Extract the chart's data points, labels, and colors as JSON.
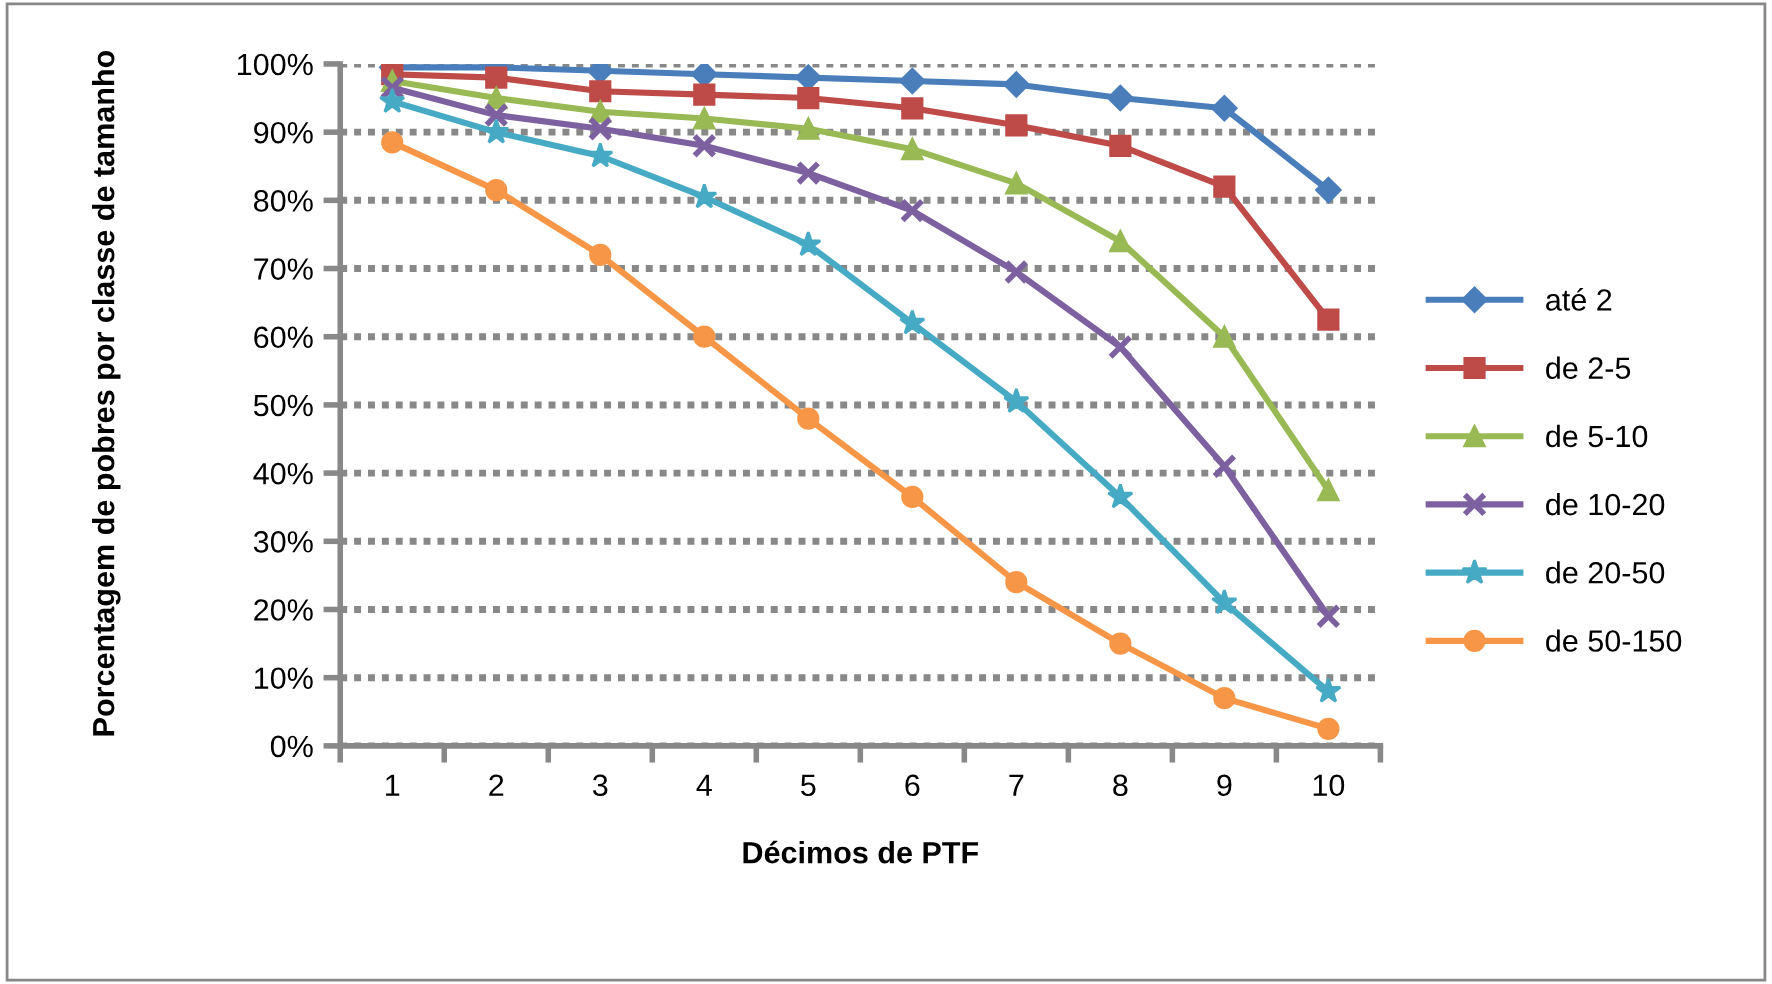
{
  "chart_data": {
    "type": "line",
    "xlabel": "Décimos de PTF",
    "ylabel": "Porcentagem de pobres por classe de tamanho",
    "categories": [
      "1",
      "2",
      "3",
      "4",
      "5",
      "6",
      "7",
      "8",
      "9",
      "10"
    ],
    "ylim": [
      0,
      100
    ],
    "yticks": [
      {
        "value": 0,
        "label": "0%"
      },
      {
        "value": 10,
        "label": "10%"
      },
      {
        "value": 20,
        "label": "20%"
      },
      {
        "value": 30,
        "label": "30%"
      },
      {
        "value": 40,
        "label": "40%"
      },
      {
        "value": 50,
        "label": "50%"
      },
      {
        "value": 60,
        "label": "60%"
      },
      {
        "value": 70,
        "label": "70%"
      },
      {
        "value": 80,
        "label": "80%"
      },
      {
        "value": 90,
        "label": "90%"
      },
      {
        "value": 100,
        "label": "100%"
      }
    ],
    "grid": "y",
    "legend": "right",
    "series": [
      {
        "name": "até 2",
        "color": "#4a7ebb",
        "marker": "diamond",
        "values": [
          99.5,
          99.5,
          99,
          98.5,
          98,
          97.5,
          97,
          95,
          93.5,
          81.5
        ]
      },
      {
        "name": "de 2-5",
        "color": "#be4b48",
        "marker": "square",
        "values": [
          98.5,
          98,
          96,
          95.5,
          95,
          93.5,
          91,
          88,
          82,
          62.5
        ]
      },
      {
        "name": "de 5-10",
        "color": "#98b954",
        "marker": "triangle",
        "values": [
          97.5,
          95,
          93,
          92,
          90.5,
          87.5,
          82.5,
          74,
          60,
          37.5
        ]
      },
      {
        "name": "de 10-20",
        "color": "#7d60a0",
        "marker": "cross",
        "values": [
          96.5,
          92.5,
          90.5,
          88,
          84,
          78.5,
          69.5,
          58.5,
          41,
          19
        ]
      },
      {
        "name": "de 20-50",
        "color": "#46aac5",
        "marker": "star",
        "values": [
          94.5,
          90,
          86.5,
          80.5,
          73.5,
          62,
          50.5,
          36.5,
          21,
          8
        ]
      },
      {
        "name": "de 50-150",
        "color": "#f79646",
        "marker": "circle",
        "values": [
          88.5,
          81.5,
          72,
          60,
          48,
          36.5,
          24,
          15,
          7,
          2.5
        ]
      }
    ]
  }
}
